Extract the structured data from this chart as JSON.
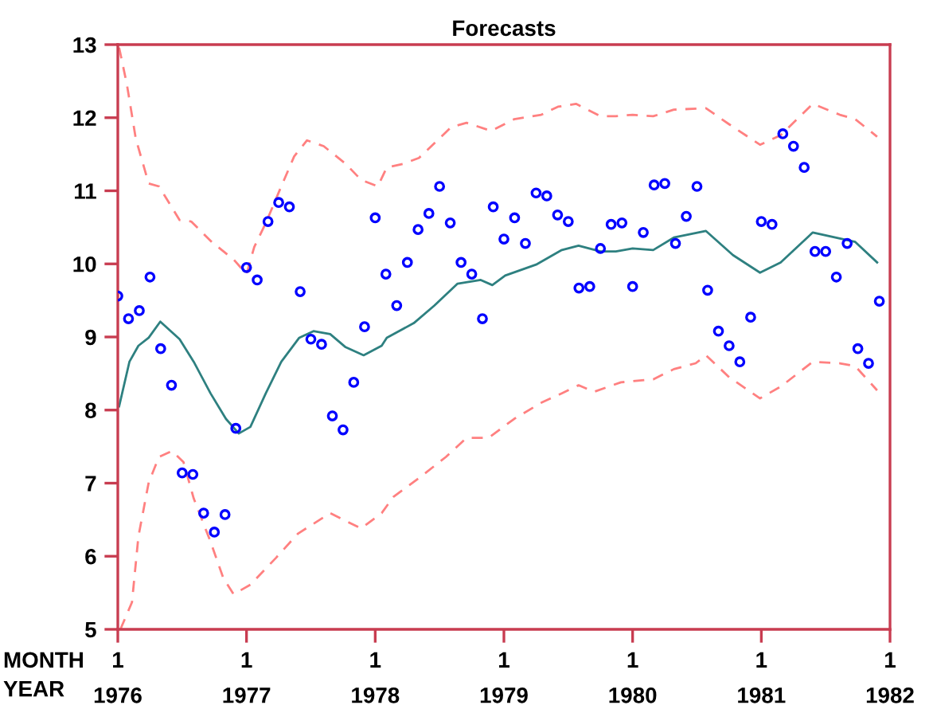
{
  "chart_data": {
    "type": "line",
    "title": "Forecasts",
    "xlabel": "YEAR",
    "xlim": [
      1976,
      1982
    ],
    "xticks": [
      1976,
      1977,
      1978,
      1979,
      1980,
      1981,
      1982
    ],
    "annotations": [
      "MONTH",
      "1",
      "1",
      "1",
      "1",
      "1",
      "1",
      "1"
    ],
    "ylim": [
      5,
      13
    ],
    "yticks": [
      5,
      6,
      7,
      8,
      9,
      10,
      11,
      12,
      13
    ],
    "grid": false,
    "series": [
      {
        "type": "scatter",
        "marker": "circle",
        "color": "#0000ff",
        "x": [
          1976.0,
          1976.083,
          1976.167,
          1976.25,
          1976.333,
          1976.417,
          1976.5,
          1976.583,
          1976.667,
          1976.75,
          1976.833,
          1976.917,
          1977.0,
          1977.083,
          1977.167,
          1977.25,
          1977.333,
          1977.417,
          1977.5,
          1977.583,
          1977.667,
          1977.75,
          1977.833,
          1977.917,
          1978.0,
          1978.083,
          1978.167,
          1978.25,
          1978.333,
          1978.417,
          1978.5,
          1978.583,
          1978.667,
          1978.75,
          1978.833,
          1978.917,
          1979.0,
          1979.083,
          1979.167,
          1979.25,
          1979.333,
          1979.417,
          1979.5,
          1979.583,
          1979.667,
          1979.75,
          1979.833,
          1979.917,
          1980.0,
          1980.083,
          1980.167,
          1980.25,
          1980.333,
          1980.417,
          1980.5,
          1980.583,
          1980.667,
          1980.75,
          1980.833,
          1980.917,
          1981.0,
          1981.083,
          1981.167,
          1981.25,
          1981.333,
          1981.417,
          1981.5,
          1981.583,
          1981.667,
          1981.75,
          1981.833,
          1981.917
        ],
        "values": [
          9.56,
          9.25,
          9.36,
          9.82,
          8.84,
          8.34,
          7.14,
          7.12,
          6.59,
          6.33,
          6.57,
          7.75,
          9.95,
          9.78,
          10.58,
          10.84,
          10.78,
          9.62,
          8.97,
          8.9,
          7.92,
          7.73,
          8.38,
          9.14,
          10.63,
          9.86,
          9.43,
          10.02,
          10.47,
          10.69,
          11.06,
          10.56,
          10.02,
          9.86,
          9.25,
          10.78,
          10.34,
          10.63,
          10.28,
          10.97,
          10.93,
          10.67,
          10.58,
          9.67,
          9.69,
          10.21,
          10.54,
          10.56,
          9.69,
          10.43,
          11.08,
          11.1,
          10.28,
          10.65,
          11.06,
          9.64,
          9.08,
          8.88,
          8.66,
          9.27,
          10.58,
          10.54,
          11.78,
          11.61,
          11.32,
          10.17,
          10.17,
          9.82,
          10.28,
          8.84,
          8.64,
          9.49
        ]
      },
      {
        "line_style": "solid",
        "color": "#2e8080",
        "x": [
          1976.01,
          1976.09,
          1976.16,
          1976.24,
          1976.33,
          1976.48,
          1976.59,
          1976.72,
          1976.84,
          1976.94,
          1977.03,
          1977.15,
          1977.27,
          1977.41,
          1977.52,
          1977.65,
          1977.77,
          1977.91,
          1978.05,
          1978.09,
          1978.3,
          1978.46,
          1978.64,
          1978.82,
          1978.91,
          1979.01,
          1979.25,
          1979.45,
          1979.58,
          1979.75,
          1979.87,
          1980.0,
          1980.16,
          1980.32,
          1980.57,
          1980.78,
          1980.99,
          1981.15,
          1981.4,
          1981.73,
          1981.9
        ],
        "values": [
          8.05,
          8.66,
          8.88,
          8.99,
          9.21,
          8.97,
          8.66,
          8.23,
          7.88,
          7.68,
          7.77,
          8.23,
          8.66,
          8.99,
          9.08,
          9.04,
          8.86,
          8.75,
          8.88,
          8.99,
          9.19,
          9.43,
          9.73,
          9.78,
          9.71,
          9.84,
          9.99,
          10.19,
          10.25,
          10.17,
          10.17,
          10.21,
          10.19,
          10.36,
          10.45,
          10.12,
          9.88,
          10.02,
          10.43,
          10.3,
          10.02
        ]
      },
      {
        "line_style": "dashed",
        "color": "#ff8080",
        "x": [
          1976.01,
          1976.07,
          1976.14,
          1976.24,
          1976.32,
          1976.48,
          1976.57,
          1976.73,
          1976.9,
          1977.0,
          1977.06,
          1977.15,
          1977.27,
          1977.37,
          1977.47,
          1977.6,
          1977.77,
          1977.89,
          1978.02,
          1978.09,
          1978.22,
          1978.34,
          1978.46,
          1978.59,
          1978.71,
          1978.9,
          1979.08,
          1979.29,
          1979.42,
          1979.56,
          1979.75,
          1979.87,
          1980.0,
          1980.16,
          1980.32,
          1980.57,
          1980.75,
          1980.99,
          1981.15,
          1981.4,
          1981.61,
          1981.73,
          1981.9
        ],
        "values": [
          12.96,
          12.46,
          11.71,
          11.1,
          11.06,
          10.6,
          10.58,
          10.3,
          10.06,
          9.86,
          10.23,
          10.56,
          11.06,
          11.47,
          11.69,
          11.61,
          11.37,
          11.15,
          11.06,
          11.32,
          11.37,
          11.45,
          11.65,
          11.87,
          11.93,
          11.82,
          11.98,
          12.04,
          12.15,
          12.19,
          12.02,
          12.02,
          12.04,
          12.02,
          12.11,
          12.13,
          11.91,
          11.63,
          11.76,
          12.19,
          12.04,
          11.98,
          11.74
        ]
      },
      {
        "line_style": "dashed",
        "color": "#ff8080",
        "x": [
          1976.02,
          1976.11,
          1976.16,
          1976.24,
          1976.32,
          1976.42,
          1976.51,
          1976.59,
          1976.72,
          1976.82,
          1976.9,
          1977.03,
          1977.23,
          1977.4,
          1977.65,
          1977.89,
          1978.05,
          1978.14,
          1978.34,
          1978.55,
          1978.71,
          1978.88,
          1979.08,
          1979.29,
          1979.45,
          1979.58,
          1979.7,
          1979.91,
          1980.16,
          1980.32,
          1980.49,
          1980.57,
          1980.75,
          1980.99,
          1981.15,
          1981.4,
          1981.61,
          1981.73,
          1981.9
        ],
        "values": [
          5.0,
          5.37,
          6.27,
          7.01,
          7.36,
          7.44,
          7.29,
          6.79,
          6.2,
          5.7,
          5.48,
          5.61,
          5.98,
          6.31,
          6.59,
          6.38,
          6.59,
          6.81,
          7.07,
          7.36,
          7.62,
          7.62,
          7.88,
          8.1,
          8.23,
          8.34,
          8.25,
          8.38,
          8.42,
          8.56,
          8.64,
          8.75,
          8.45,
          8.16,
          8.32,
          8.66,
          8.64,
          8.6,
          8.27
        ]
      }
    ]
  }
}
